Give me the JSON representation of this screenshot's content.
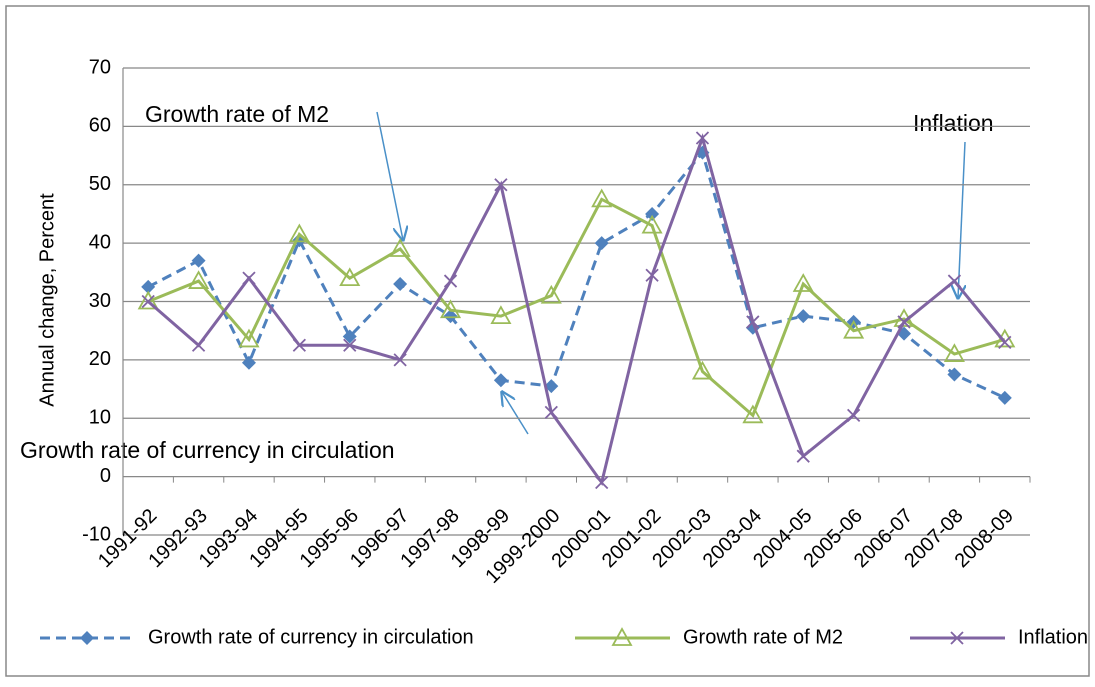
{
  "chart_data": {
    "type": "line",
    "y_label": "Annual change, Percent",
    "categories": [
      "1991-92",
      "1992-93",
      "1993-94",
      "1994-95",
      "1995-96",
      "1996-97",
      "1997-98",
      "1998-99",
      "1999-2000",
      "2000-01",
      "2001-02",
      "2002-03",
      "2003-04",
      "2004-05",
      "2005-06",
      "2006-07",
      "2007-08",
      "2008-09"
    ],
    "series": [
      {
        "name": "Growth rate of currency in circulation",
        "color": "#4f81bd",
        "marker": "diamond",
        "dashed": true,
        "values": [
          32.5,
          37,
          19.5,
          40.5,
          24,
          33,
          27.5,
          16.5,
          15.5,
          40,
          45,
          55.5,
          25.5,
          27.5,
          26.5,
          24.5,
          17.5,
          13.5
        ]
      },
      {
        "name": "Growth rate of M2",
        "color": "#9bbb59",
        "marker": "triangle",
        "dashed": false,
        "values": [
          30,
          33.5,
          23.5,
          41.5,
          34,
          39,
          28.5,
          27.5,
          31,
          47.5,
          43,
          18,
          10.5,
          33,
          25,
          27,
          21,
          23.5
        ]
      },
      {
        "name": "Inflation",
        "color": "#8064a2",
        "marker": "x",
        "dashed": false,
        "values": [
          30,
          22.5,
          34,
          22.5,
          22.5,
          20,
          33.5,
          50,
          11,
          -1,
          34.5,
          58,
          26.5,
          3.5,
          10.5,
          26.5,
          33.5,
          23
        ]
      }
    ],
    "annotations": [
      {
        "text": "Growth rate of M2"
      },
      {
        "text": "Inflation"
      },
      {
        "text": "Growth rate of currency in circulation"
      }
    ],
    "ylim": [
      -10,
      70
    ],
    "yticks": [
      -10,
      0,
      10,
      20,
      30,
      40,
      50,
      60,
      70
    ],
    "grid": true,
    "legend": "bottom"
  }
}
